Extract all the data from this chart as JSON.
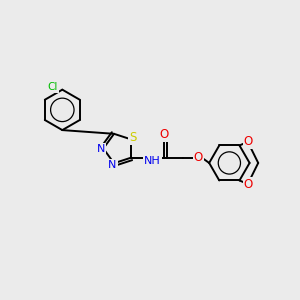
{
  "bg_color": "#ebebeb",
  "bond_color": "#000000",
  "bond_width": 1.4,
  "atom_colors": {
    "Cl": "#00bb00",
    "S": "#cccc00",
    "N": "#0000ee",
    "O": "#ee0000",
    "C": "#000000"
  },
  "figsize": [
    3.0,
    3.0
  ],
  "dpi": 100
}
